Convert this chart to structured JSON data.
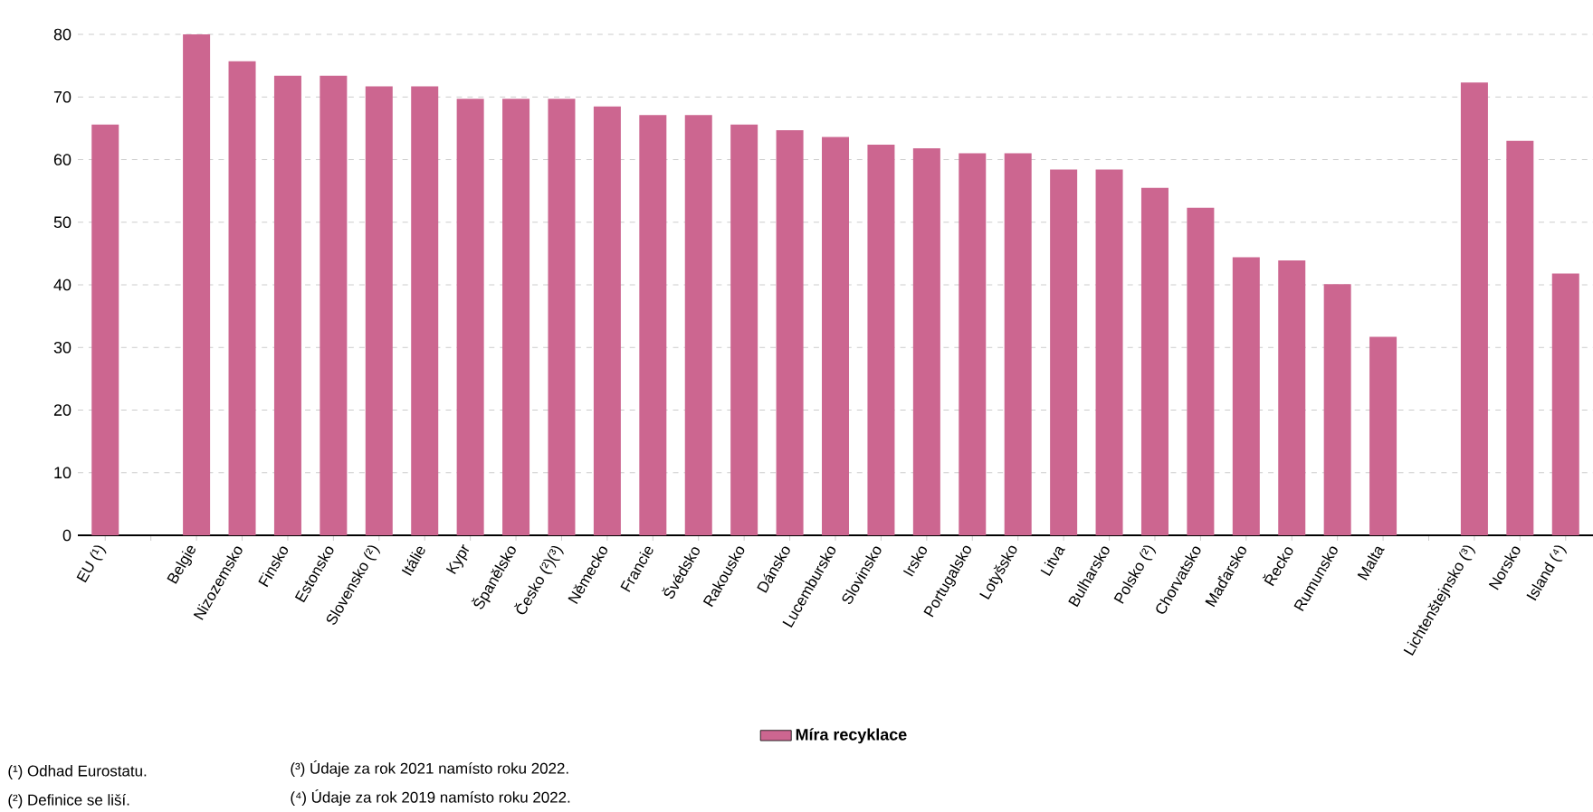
{
  "chart_data": {
    "type": "bar",
    "categories": [
      "EU (¹)",
      null,
      "Belgie",
      "Nizozemsko",
      "Finsko",
      "Estonsko",
      "Slovensko (²)",
      "Itálie",
      "Kypr",
      "Španělsko",
      "Česko (²)(³)",
      "Německo",
      "Francie",
      "Švédsko",
      "Rakousko",
      "Dánsko",
      "Lucembursko",
      "Slovinsko",
      "Irsko",
      "Portugalsko",
      "Lotyšsko",
      "Litva",
      "Bulharsko",
      "Polsko (²)",
      "Chorvatsko",
      "Maďarsko",
      "Řecko",
      "Rumunsko",
      "Malta",
      null,
      "Lichtenštejnsko (³)",
      "Norsko",
      "Island (⁴)"
    ],
    "series": [
      {
        "name": "Míra recyklace",
        "color": "#cc6690",
        "values": [
          65.6,
          null,
          80.0,
          75.7,
          73.4,
          73.4,
          71.7,
          71.7,
          69.7,
          69.7,
          69.7,
          68.5,
          67.1,
          67.1,
          65.6,
          64.7,
          63.6,
          62.4,
          61.8,
          61.0,
          61.0,
          58.4,
          58.4,
          55.5,
          52.3,
          44.4,
          43.9,
          40.1,
          31.7,
          null,
          72.3,
          63.0,
          41.8
        ]
      }
    ],
    "ylim": [
      0,
      80
    ],
    "yticks": [
      0,
      10,
      20,
      30,
      40,
      50,
      60,
      70,
      80
    ],
    "grid": "y",
    "legend": "bottom",
    "annotations": [
      "(¹) Odhad Eurostatu.",
      "(²) Definice se liší.",
      "(³) Údaje za rok 2021 namísto roku 2022.",
      "(⁴) Údaje za rok 2019 namísto roku 2022."
    ]
  }
}
